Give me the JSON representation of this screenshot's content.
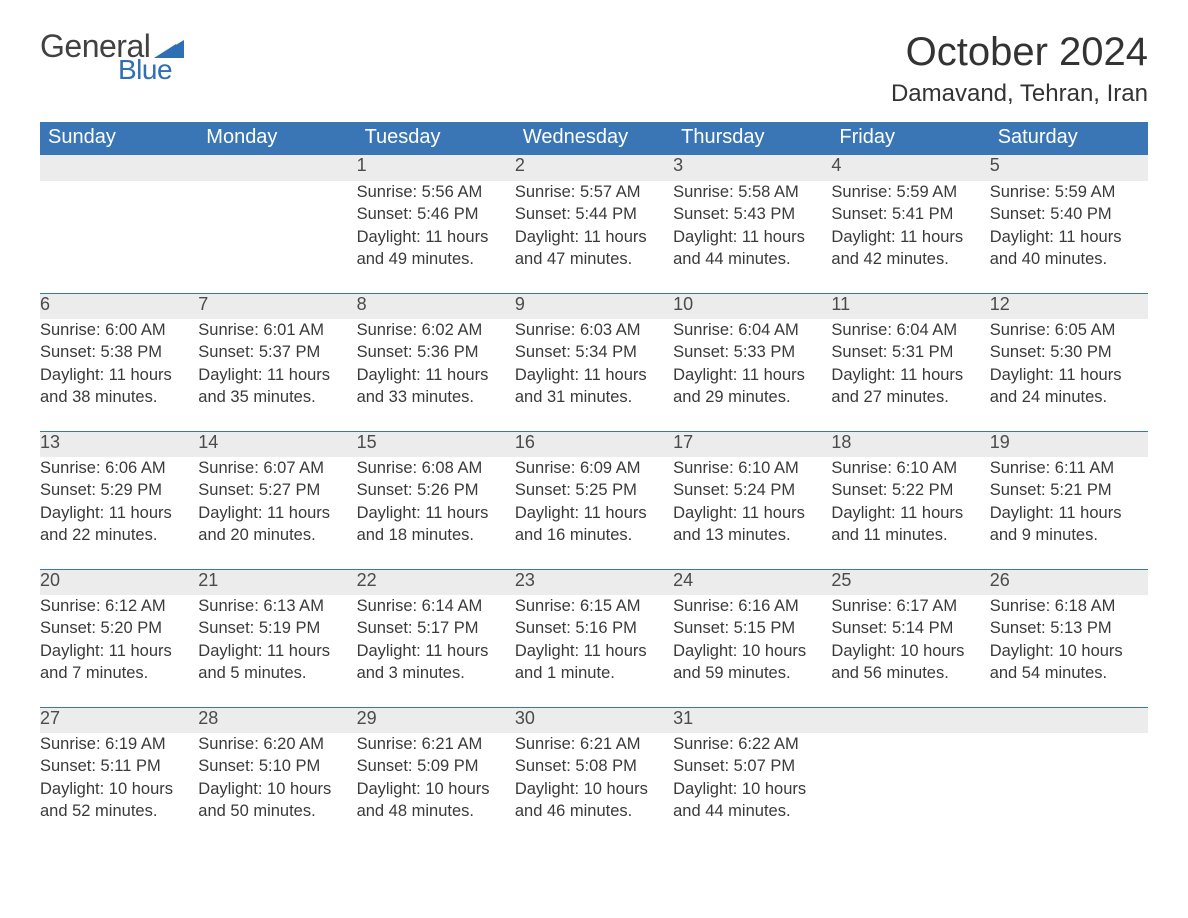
{
  "logo": {
    "text_general": "General",
    "text_blue": "Blue",
    "flag_color": "#2f6fb3",
    "general_color": "#414141",
    "blue_color": "#2f6fb3"
  },
  "page": {
    "title": "October 2024",
    "location": "Damavand, Tehran, Iran",
    "title_fontsize": 40,
    "location_fontsize": 24,
    "background_color": "#ffffff"
  },
  "calendar": {
    "header_bg": "#3a76b6",
    "header_fg": "#ffffff",
    "daynum_bg": "#ececec",
    "daynum_border": "#3a76b6",
    "text_color": "#3a3a3a",
    "body_fontsize": 16.5,
    "header_fontsize": 20,
    "daynum_fontsize": 18,
    "days_of_week": [
      "Sunday",
      "Monday",
      "Tuesday",
      "Wednesday",
      "Thursday",
      "Friday",
      "Saturday"
    ],
    "weeks": [
      [
        null,
        null,
        {
          "n": "1",
          "sunrise": "Sunrise: 5:56 AM",
          "sunset": "Sunset: 5:46 PM",
          "day1": "Daylight: 11 hours",
          "day2": "and 49 minutes."
        },
        {
          "n": "2",
          "sunrise": "Sunrise: 5:57 AM",
          "sunset": "Sunset: 5:44 PM",
          "day1": "Daylight: 11 hours",
          "day2": "and 47 minutes."
        },
        {
          "n": "3",
          "sunrise": "Sunrise: 5:58 AM",
          "sunset": "Sunset: 5:43 PM",
          "day1": "Daylight: 11 hours",
          "day2": "and 44 minutes."
        },
        {
          "n": "4",
          "sunrise": "Sunrise: 5:59 AM",
          "sunset": "Sunset: 5:41 PM",
          "day1": "Daylight: 11 hours",
          "day2": "and 42 minutes."
        },
        {
          "n": "5",
          "sunrise": "Sunrise: 5:59 AM",
          "sunset": "Sunset: 5:40 PM",
          "day1": "Daylight: 11 hours",
          "day2": "and 40 minutes."
        }
      ],
      [
        {
          "n": "6",
          "sunrise": "Sunrise: 6:00 AM",
          "sunset": "Sunset: 5:38 PM",
          "day1": "Daylight: 11 hours",
          "day2": "and 38 minutes."
        },
        {
          "n": "7",
          "sunrise": "Sunrise: 6:01 AM",
          "sunset": "Sunset: 5:37 PM",
          "day1": "Daylight: 11 hours",
          "day2": "and 35 minutes."
        },
        {
          "n": "8",
          "sunrise": "Sunrise: 6:02 AM",
          "sunset": "Sunset: 5:36 PM",
          "day1": "Daylight: 11 hours",
          "day2": "and 33 minutes."
        },
        {
          "n": "9",
          "sunrise": "Sunrise: 6:03 AM",
          "sunset": "Sunset: 5:34 PM",
          "day1": "Daylight: 11 hours",
          "day2": "and 31 minutes."
        },
        {
          "n": "10",
          "sunrise": "Sunrise: 6:04 AM",
          "sunset": "Sunset: 5:33 PM",
          "day1": "Daylight: 11 hours",
          "day2": "and 29 minutes."
        },
        {
          "n": "11",
          "sunrise": "Sunrise: 6:04 AM",
          "sunset": "Sunset: 5:31 PM",
          "day1": "Daylight: 11 hours",
          "day2": "and 27 minutes."
        },
        {
          "n": "12",
          "sunrise": "Sunrise: 6:05 AM",
          "sunset": "Sunset: 5:30 PM",
          "day1": "Daylight: 11 hours",
          "day2": "and 24 minutes."
        }
      ],
      [
        {
          "n": "13",
          "sunrise": "Sunrise: 6:06 AM",
          "sunset": "Sunset: 5:29 PM",
          "day1": "Daylight: 11 hours",
          "day2": "and 22 minutes."
        },
        {
          "n": "14",
          "sunrise": "Sunrise: 6:07 AM",
          "sunset": "Sunset: 5:27 PM",
          "day1": "Daylight: 11 hours",
          "day2": "and 20 minutes."
        },
        {
          "n": "15",
          "sunrise": "Sunrise: 6:08 AM",
          "sunset": "Sunset: 5:26 PM",
          "day1": "Daylight: 11 hours",
          "day2": "and 18 minutes."
        },
        {
          "n": "16",
          "sunrise": "Sunrise: 6:09 AM",
          "sunset": "Sunset: 5:25 PM",
          "day1": "Daylight: 11 hours",
          "day2": "and 16 minutes."
        },
        {
          "n": "17",
          "sunrise": "Sunrise: 6:10 AM",
          "sunset": "Sunset: 5:24 PM",
          "day1": "Daylight: 11 hours",
          "day2": "and 13 minutes."
        },
        {
          "n": "18",
          "sunrise": "Sunrise: 6:10 AM",
          "sunset": "Sunset: 5:22 PM",
          "day1": "Daylight: 11 hours",
          "day2": "and 11 minutes."
        },
        {
          "n": "19",
          "sunrise": "Sunrise: 6:11 AM",
          "sunset": "Sunset: 5:21 PM",
          "day1": "Daylight: 11 hours",
          "day2": "and 9 minutes."
        }
      ],
      [
        {
          "n": "20",
          "sunrise": "Sunrise: 6:12 AM",
          "sunset": "Sunset: 5:20 PM",
          "day1": "Daylight: 11 hours",
          "day2": "and 7 minutes."
        },
        {
          "n": "21",
          "sunrise": "Sunrise: 6:13 AM",
          "sunset": "Sunset: 5:19 PM",
          "day1": "Daylight: 11 hours",
          "day2": "and 5 minutes."
        },
        {
          "n": "22",
          "sunrise": "Sunrise: 6:14 AM",
          "sunset": "Sunset: 5:17 PM",
          "day1": "Daylight: 11 hours",
          "day2": "and 3 minutes."
        },
        {
          "n": "23",
          "sunrise": "Sunrise: 6:15 AM",
          "sunset": "Sunset: 5:16 PM",
          "day1": "Daylight: 11 hours",
          "day2": "and 1 minute."
        },
        {
          "n": "24",
          "sunrise": "Sunrise: 6:16 AM",
          "sunset": "Sunset: 5:15 PM",
          "day1": "Daylight: 10 hours",
          "day2": "and 59 minutes."
        },
        {
          "n": "25",
          "sunrise": "Sunrise: 6:17 AM",
          "sunset": "Sunset: 5:14 PM",
          "day1": "Daylight: 10 hours",
          "day2": "and 56 minutes."
        },
        {
          "n": "26",
          "sunrise": "Sunrise: 6:18 AM",
          "sunset": "Sunset: 5:13 PM",
          "day1": "Daylight: 10 hours",
          "day2": "and 54 minutes."
        }
      ],
      [
        {
          "n": "27",
          "sunrise": "Sunrise: 6:19 AM",
          "sunset": "Sunset: 5:11 PM",
          "day1": "Daylight: 10 hours",
          "day2": "and 52 minutes."
        },
        {
          "n": "28",
          "sunrise": "Sunrise: 6:20 AM",
          "sunset": "Sunset: 5:10 PM",
          "day1": "Daylight: 10 hours",
          "day2": "and 50 minutes."
        },
        {
          "n": "29",
          "sunrise": "Sunrise: 6:21 AM",
          "sunset": "Sunset: 5:09 PM",
          "day1": "Daylight: 10 hours",
          "day2": "and 48 minutes."
        },
        {
          "n": "30",
          "sunrise": "Sunrise: 6:21 AM",
          "sunset": "Sunset: 5:08 PM",
          "day1": "Daylight: 10 hours",
          "day2": "and 46 minutes."
        },
        {
          "n": "31",
          "sunrise": "Sunrise: 6:22 AM",
          "sunset": "Sunset: 5:07 PM",
          "day1": "Daylight: 10 hours",
          "day2": "and 44 minutes."
        },
        null,
        null
      ]
    ]
  }
}
